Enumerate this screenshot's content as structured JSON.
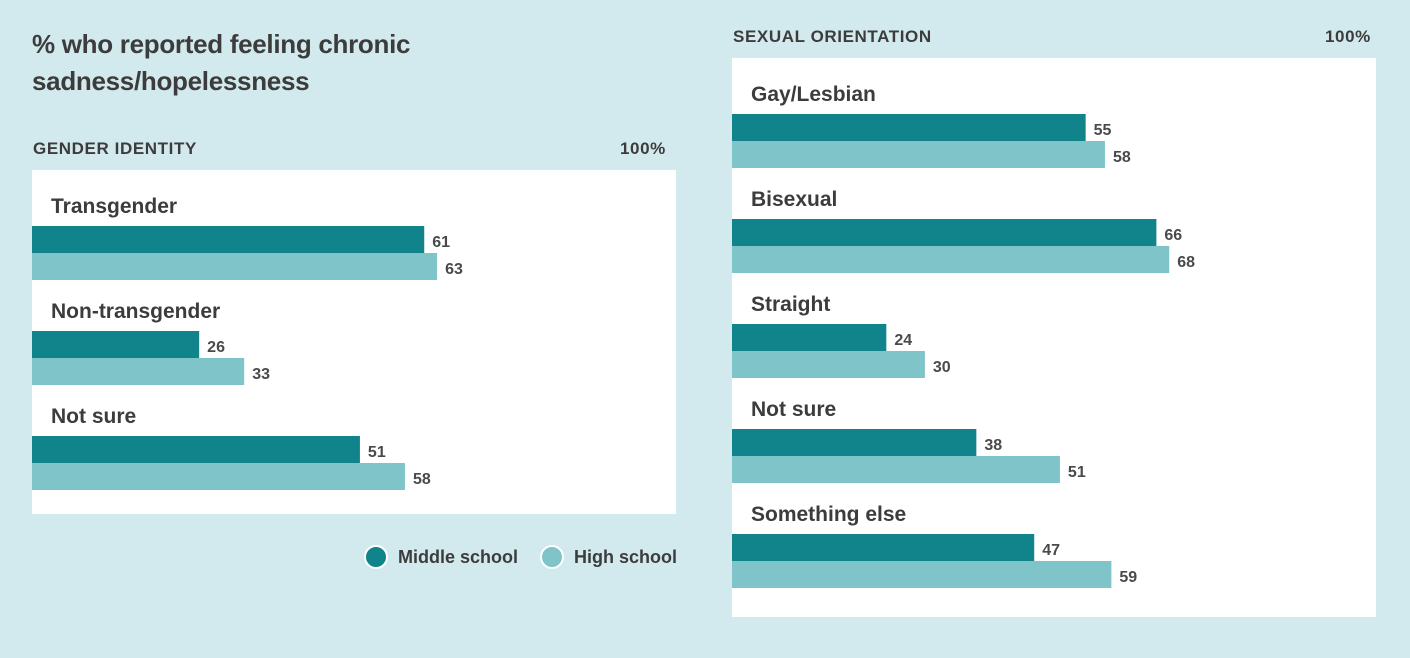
{
  "title_line1": "% who reported feeling chronic",
  "title_line2": "sadness/hopelessness",
  "colors": {
    "middle_school": "#11838a",
    "high_school": "#7fc4c8",
    "background": "#d2eaee",
    "panel": "#ffffff"
  },
  "legend": {
    "middle_label": "Middle school",
    "high_label": "High school"
  },
  "chart_data": [
    {
      "type": "bar",
      "orientation": "horizontal",
      "title": "GENDER IDENTITY",
      "scale_label": "100%",
      "xlim": [
        0,
        100
      ],
      "categories": [
        "Transgender",
        "Non-transgender",
        "Not sure"
      ],
      "series": [
        {
          "name": "Middle school",
          "values": [
            61,
            26,
            51
          ]
        },
        {
          "name": "High school",
          "values": [
            63,
            33,
            58
          ]
        }
      ]
    },
    {
      "type": "bar",
      "orientation": "horizontal",
      "title": "SEXUAL ORIENTATION",
      "scale_label": "100%",
      "xlim": [
        0,
        100
      ],
      "categories": [
        "Gay/Lesbian",
        "Bisexual",
        "Straight",
        "Not sure",
        "Something else"
      ],
      "series": [
        {
          "name": "Middle school",
          "values": [
            55,
            66,
            24,
            38,
            47
          ]
        },
        {
          "name": "High school",
          "values": [
            58,
            68,
            30,
            51,
            59
          ]
        }
      ]
    }
  ]
}
